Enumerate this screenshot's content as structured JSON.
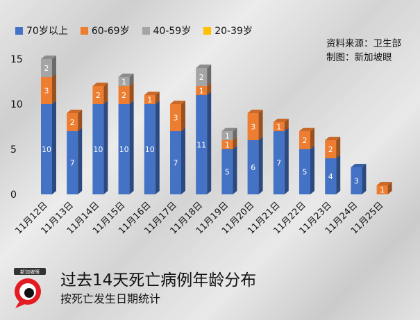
{
  "legend": [
    {
      "label": "70岁以上",
      "color": "#4472C4"
    },
    {
      "label": "60-69岁",
      "color": "#ED7D31"
    },
    {
      "label": "40-59岁",
      "color": "#A5A5A5"
    },
    {
      "label": "20-39岁",
      "color": "#FFC000"
    }
  ],
  "credits": {
    "line1": "资料来源：卫生部",
    "line2": "制图：新加坡眼"
  },
  "footer": {
    "title": "过去14天死亡病例年龄分布",
    "subtitle": "按死亡发生日期统计",
    "logo_text": "新加坡眼"
  },
  "chart_data": {
    "type": "bar",
    "stacked": true,
    "categories": [
      "11月12日",
      "11月13日",
      "11月14日",
      "11月15日",
      "11月16日",
      "11月17日",
      "11月18日",
      "11月19日",
      "11月20日",
      "11月21日",
      "11月22日",
      "11月23日",
      "11月24日",
      "11月25日"
    ],
    "series": [
      {
        "name": "70岁以上",
        "color": "#4472C4",
        "values": [
          10,
          7,
          10,
          10,
          10,
          7,
          11,
          5,
          6,
          7,
          5,
          4,
          3,
          0
        ]
      },
      {
        "name": "60-69岁",
        "color": "#ED7D31",
        "values": [
          3,
          2,
          2,
          2,
          1,
          3,
          1,
          1,
          3,
          1,
          2,
          2,
          0,
          1
        ]
      },
      {
        "name": "40-59岁",
        "color": "#A5A5A5",
        "values": [
          2,
          0,
          0,
          1,
          0,
          0,
          2,
          1,
          0,
          0,
          0,
          0,
          0,
          0
        ]
      },
      {
        "name": "20-39岁",
        "color": "#FFC000",
        "values": [
          0,
          0,
          0,
          0,
          0,
          0,
          0,
          0,
          0,
          0,
          0,
          0,
          0,
          0
        ]
      }
    ],
    "yticks": [
      0,
      5,
      10,
      15
    ],
    "ylim": [
      0,
      15
    ],
    "grid": false,
    "legend_position": "top-left"
  }
}
